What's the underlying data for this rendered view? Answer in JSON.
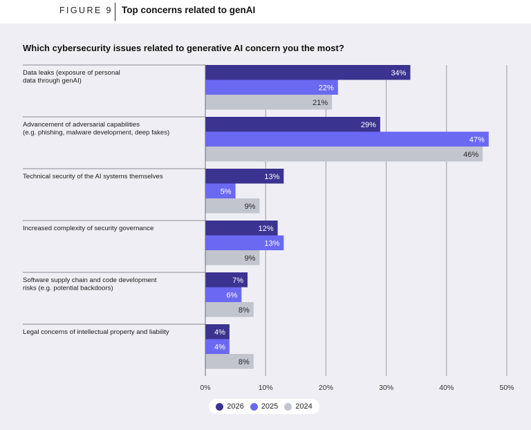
{
  "figure": {
    "label": "FIGURE 9",
    "title": "Top concerns related to genAI"
  },
  "chart_data": {
    "type": "bar",
    "orientation": "horizontal",
    "title": "Which cybersecurity issues related to generative AI concern you the most?",
    "categories": [
      [
        "Data leaks (exposure of personal",
        "data through genAI)"
      ],
      [
        "Advancement of adversarial capabilities",
        "(e.g. phishing, malware development, deep fakes)"
      ],
      [
        "Technical security of the AI systems themselves"
      ],
      [
        "Increased complexity of security governance"
      ],
      [
        "Software supply chain and code development",
        "risks (e.g. potential backdoors)"
      ],
      [
        "Legal concerns of intellectual property and liability"
      ]
    ],
    "series": [
      {
        "name": "2026",
        "color": "#3b3390",
        "label_color": "#ffffff",
        "values": [
          34,
          29,
          13,
          12,
          7,
          4
        ]
      },
      {
        "name": "2025",
        "color": "#6b69f2",
        "label_color": "#ffffff",
        "values": [
          22,
          47,
          5,
          13,
          6,
          4
        ]
      },
      {
        "name": "2024",
        "color": "#c2c4ce",
        "label_color": "#2a2a2a",
        "values": [
          21,
          46,
          9,
          9,
          8,
          8
        ]
      }
    ],
    "value_suffix": "%",
    "xlim": [
      0,
      50
    ],
    "xticks": [
      "0%",
      "10%",
      "20%",
      "30%",
      "40%",
      "50%"
    ],
    "xtick_values": [
      0,
      10,
      20,
      30,
      40,
      50
    ],
    "grid": true,
    "legend_position": "bottom-center"
  }
}
